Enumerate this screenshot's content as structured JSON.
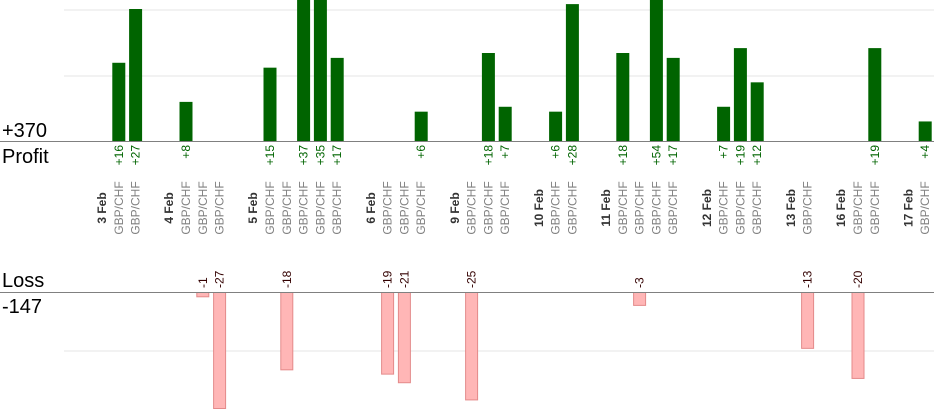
{
  "labels": {
    "profit_total": "+370",
    "profit": "Profit",
    "loss": "Loss",
    "loss_total": "-147"
  },
  "colors": {
    "profit_bar": "#006400",
    "profit_text": "#006400",
    "loss_fill": "#ffb6b6",
    "loss_stroke": "#e48a8a",
    "loss_text": "#330000",
    "date_text": "#333333",
    "pair_text": "#808080",
    "grid": "#e6e6e6",
    "axis": "#808080"
  },
  "chart_data": {
    "type": "bar",
    "grid": true,
    "profit_scale_max": 27,
    "loss_scale_max": 27,
    "date_groups": [
      {
        "date": "3 Feb",
        "trades": [
          {
            "pair": "GBP/CHF",
            "value": 16
          },
          {
            "pair": "GBP/CHF",
            "value": 27
          }
        ]
      },
      {
        "date": "4 Feb",
        "trades": [
          {
            "pair": "GBP/CHF",
            "value": 8
          },
          {
            "pair": "GBP/CHF",
            "value": -1
          },
          {
            "pair": "GBP/CHF",
            "value": -27
          }
        ]
      },
      {
        "date": "5 Feb",
        "trades": [
          {
            "pair": "GBP/CHF",
            "value": 15
          },
          {
            "pair": "GBP/CHF",
            "value": -18
          },
          {
            "pair": "GBP/CHF",
            "value": 37
          },
          {
            "pair": "GBP/CHF",
            "value": 35
          },
          {
            "pair": "GBP/CHF",
            "value": 17
          }
        ]
      },
      {
        "date": "6 Feb",
        "trades": [
          {
            "pair": "GBP/CHF",
            "value": -19
          },
          {
            "pair": "GBP/CHF",
            "value": -21
          },
          {
            "pair": "GBP/CHF",
            "value": 6
          }
        ]
      },
      {
        "date": "9 Feb",
        "trades": [
          {
            "pair": "GBP/CHF",
            "value": -25
          },
          {
            "pair": "GBP/CHF",
            "value": 18
          },
          {
            "pair": "GBP/CHF",
            "value": 7
          }
        ]
      },
      {
        "date": "10 Feb",
        "trades": [
          {
            "pair": "GBP/CHF",
            "value": 6
          },
          {
            "pair": "GBP/CHF",
            "value": 28
          }
        ]
      },
      {
        "date": "11 Feb",
        "trades": [
          {
            "pair": "GBP/CHF",
            "value": 18
          },
          {
            "pair": "GBP/CHF",
            "value": -3
          },
          {
            "pair": "GBP/CHF",
            "value": 54
          },
          {
            "pair": "GBP/CHF",
            "value": 17
          }
        ]
      },
      {
        "date": "12 Feb",
        "trades": [
          {
            "pair": "GBP/CHF",
            "value": 7
          },
          {
            "pair": "GBP/CHF",
            "value": 19
          },
          {
            "pair": "GBP/CHF",
            "value": 12
          }
        ]
      },
      {
        "date": "13 Feb",
        "trades": [
          {
            "pair": "GBP/CHF",
            "value": -13
          }
        ]
      },
      {
        "date": "16 Feb",
        "trades": [
          {
            "pair": "GBP/CHF",
            "value": -20
          },
          {
            "pair": "GBP/CHF",
            "value": 19
          }
        ]
      },
      {
        "date": "17 Feb",
        "trades": [
          {
            "pair": "GBP/CHF",
            "value": 4
          }
        ]
      }
    ]
  }
}
